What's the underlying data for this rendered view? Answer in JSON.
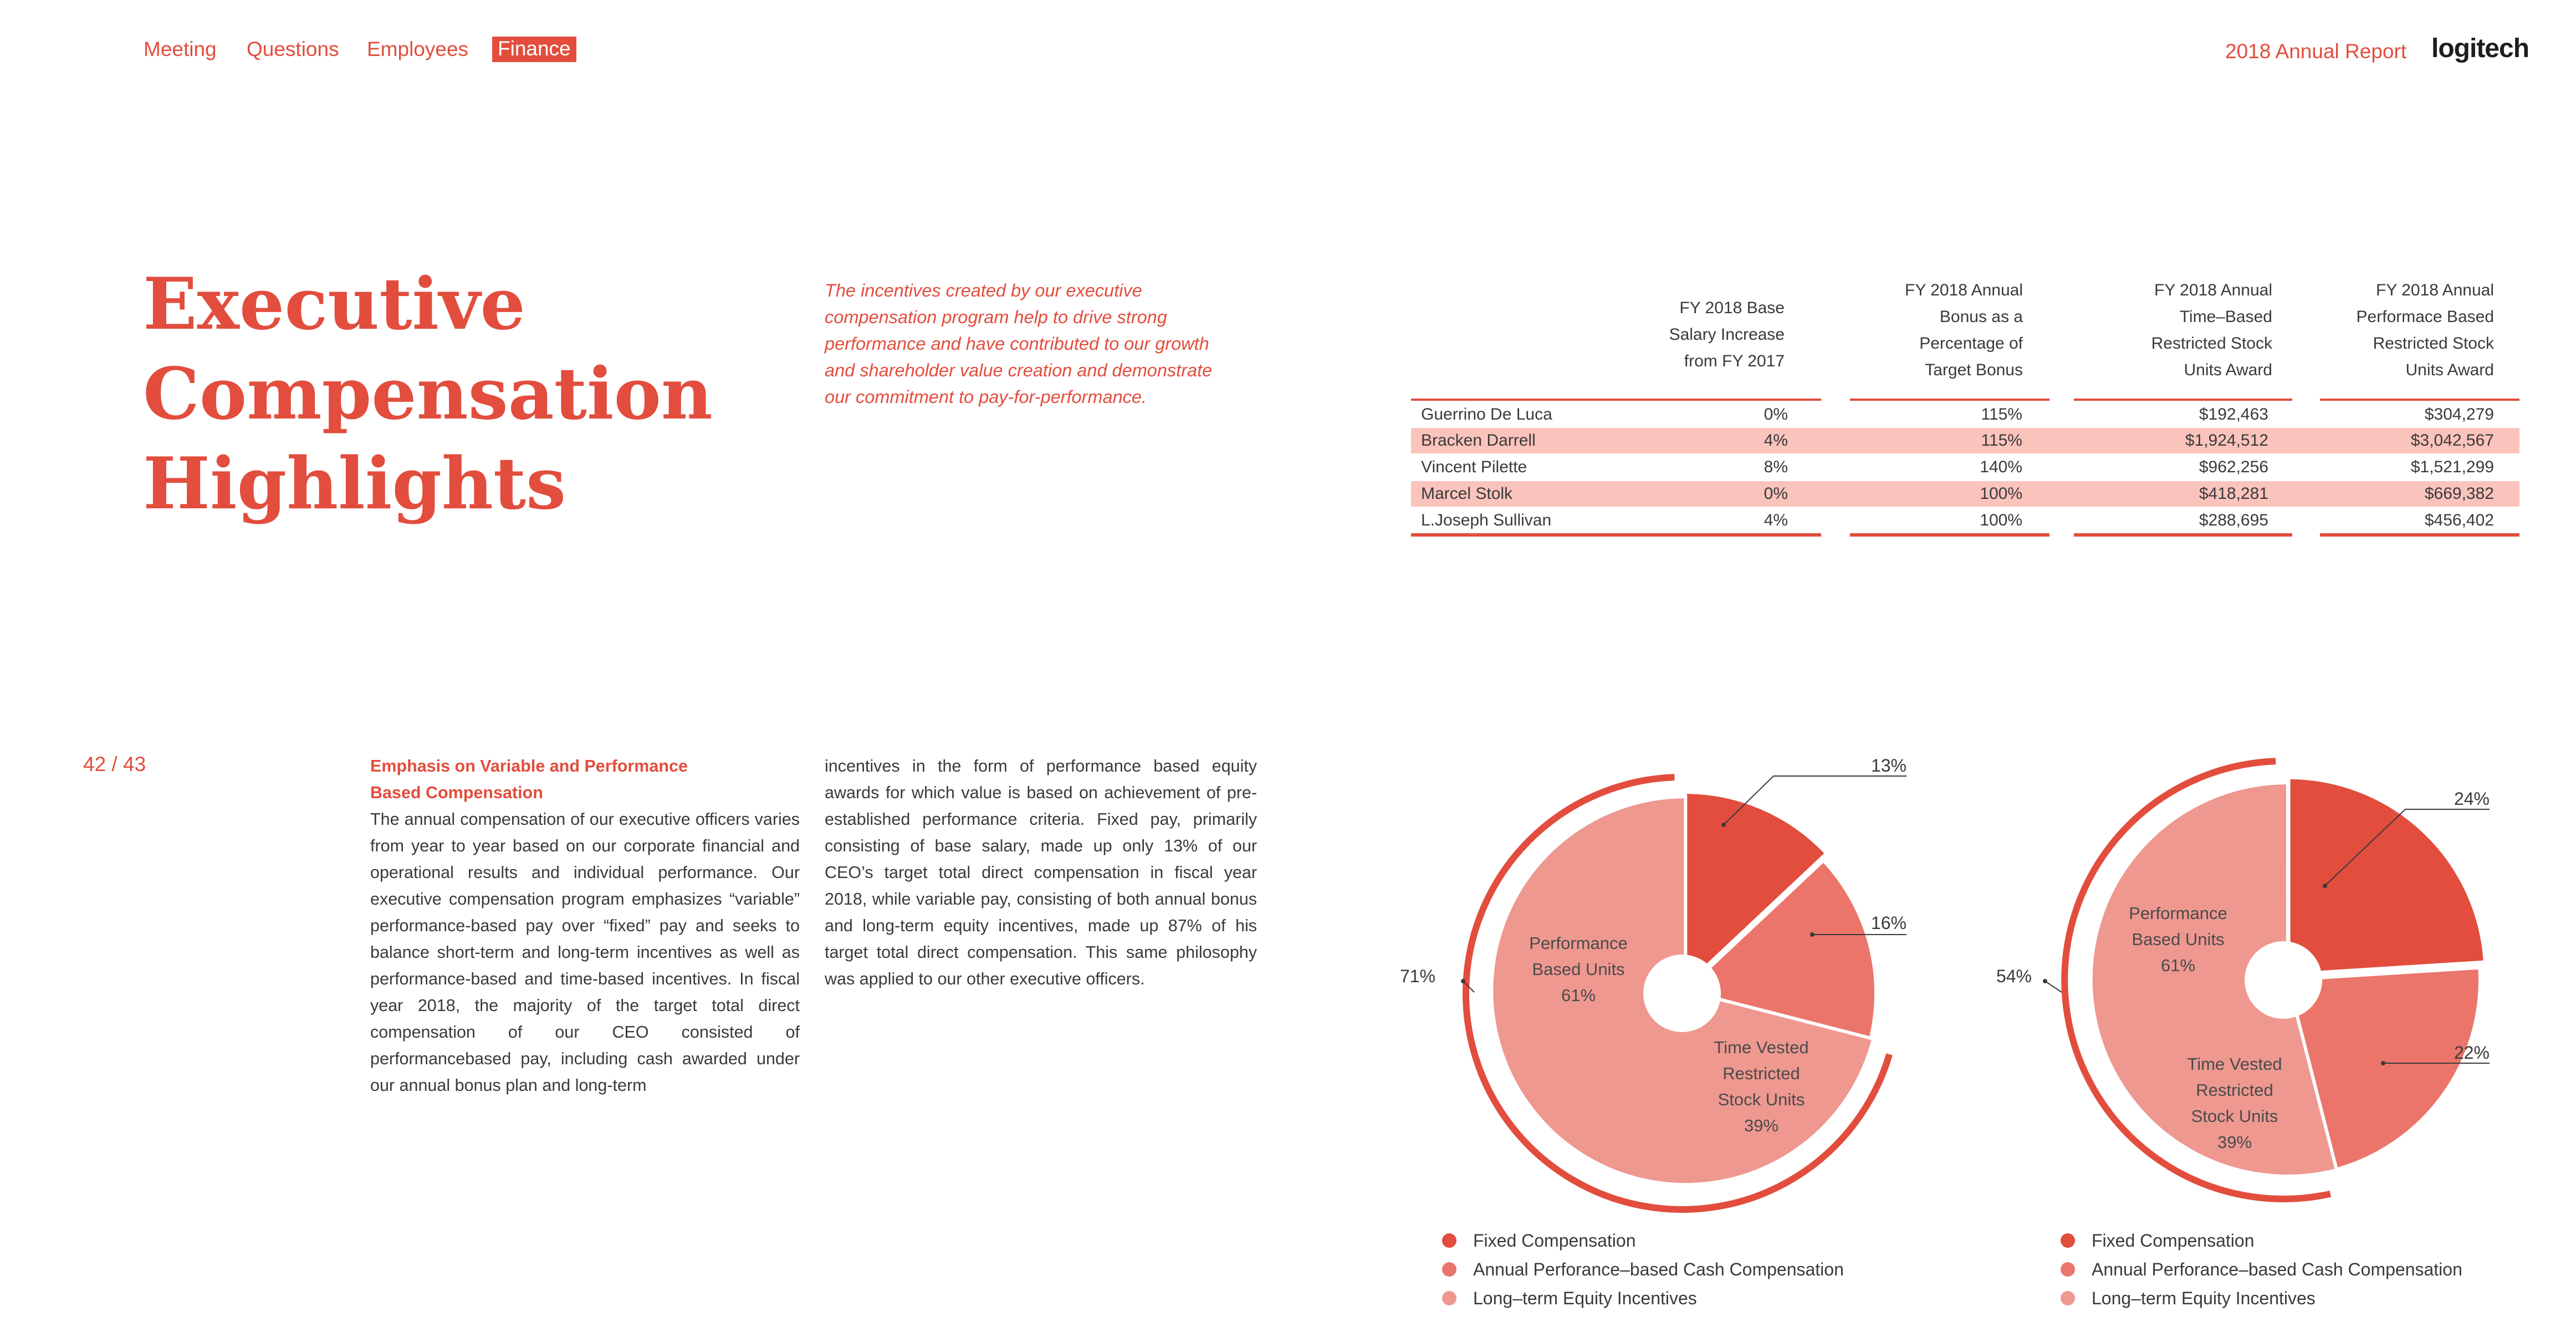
{
  "nav": {
    "items": [
      {
        "label": "Meeting",
        "active": false
      },
      {
        "label": "Questions",
        "active": false
      },
      {
        "label": "Employees",
        "active": false
      },
      {
        "label": "Finance",
        "active": true
      }
    ]
  },
  "header": {
    "report_title": "2018 Annual Report",
    "logo": "logitech"
  },
  "page_number": "42 / 43",
  "title_lines": [
    "Executive",
    "Compensation",
    "Highlights"
  ],
  "quote": "The incentives created by our executive compensation program help to drive strong performance and have contributed to our growth and shareholder value creation and demonstrate our commitment to pay-for-performance.",
  "body": {
    "subheading": "Emphasis on Variable and Performance Based Compensation",
    "col1": "The annual compensation of our executive officers varies from year to year based on our corporate financial and operational results and individual performance. Our executive compensation program emphasizes “variable” performance-based pay over “fixed” pay and seeks to balance short-term and long-term incentives as well as performance-based and time-based incentives. In fiscal year 2018, the majority of the target total direct compensation of our CEO consisted of performancebased pay, including cash awarded under our annual bonus plan and long-term",
    "col2": "incentives in the form of performance based equity awards for which value is based on achievement of pre-established performance criteria. Fixed pay, primarily consisting of base salary, made up only 13% of our CEO’s target total direct compensation in fiscal year 2018, while variable pay, consisting of both annual bonus and long-term equity incentives, made up 87% of his target total direct compensation. This same philosophy was applied to our other executive officers."
  },
  "table": {
    "headers": [
      [
        "FY 2018 Base",
        "Salary Increase",
        "from FY 2017"
      ],
      [
        "FY 2018 Annual",
        "Bonus as a",
        "Percentage of",
        "Target Bonus"
      ],
      [
        "FY 2018 Annual",
        "Time–Based",
        "Restricted Stock",
        "Units Award"
      ],
      [
        "FY 2018 Annual",
        "Performace Based",
        "Restricted Stock",
        "Units Award"
      ]
    ],
    "rows": [
      {
        "name": "Guerrino De Luca",
        "salary_increase": "0%",
        "bonus_pct": "115%",
        "time_rsu": "$192,463",
        "perf_rsu": "$304,279",
        "highlight": false
      },
      {
        "name": "Bracken Darrell",
        "salary_increase": "4%",
        "bonus_pct": "115%",
        "time_rsu": "$1,924,512",
        "perf_rsu": "$3,042,567",
        "highlight": true
      },
      {
        "name": "Vincent Pilette",
        "salary_increase": "8%",
        "bonus_pct": "140%",
        "time_rsu": "$962,256",
        "perf_rsu": "$1,521,299",
        "highlight": false
      },
      {
        "name": "Marcel Stolk",
        "salary_increase": "0%",
        "bonus_pct": "100%",
        "time_rsu": "$418,281",
        "perf_rsu": "$669,382",
        "highlight": true
      },
      {
        "name": "L.Joseph Sullivan",
        "salary_increase": "4%",
        "bonus_pct": "100%",
        "time_rsu": "$288,695",
        "perf_rsu": "$456,402",
        "highlight": false
      }
    ]
  },
  "colors": {
    "accent": "#e24d3d",
    "fixed": "#e24d3d",
    "annual_cash": "#eb756b",
    "long_term": "#ee9890",
    "row_highlight": "#fac3bc"
  },
  "chart_data": [
    {
      "type": "pie",
      "slices": [
        {
          "label": "Fixed Compensation",
          "value": 13
        },
        {
          "label": "Annual Perforance–based Cash Compensation",
          "value": 16
        },
        {
          "label": "Long–term Equity Incentives",
          "value": 71
        }
      ],
      "slice_labels": [
        "13%",
        "16%",
        "71%"
      ],
      "inner_labels": [
        {
          "lines": [
            "Performance",
            "Based Units"
          ],
          "value": "61%"
        },
        {
          "lines": [
            "Time Vested",
            "Restricted",
            "Stock Units"
          ],
          "value": "39%"
        }
      ],
      "legend": [
        "Fixed Compensation",
        "Annual Perforance–based Cash Compensation",
        "Long–term Equity Incentives"
      ]
    },
    {
      "type": "pie",
      "slices": [
        {
          "label": "Fixed Compensation",
          "value": 24
        },
        {
          "label": "Annual Perforance–based Cash Compensation",
          "value": 22
        },
        {
          "label": "Long–term Equity Incentives",
          "value": 54
        }
      ],
      "slice_labels": [
        "24%",
        "22%",
        "54%"
      ],
      "inner_labels": [
        {
          "lines": [
            "Performance",
            "Based Units"
          ],
          "value": "61%"
        },
        {
          "lines": [
            "Time Vested",
            "Restricted",
            "Stock Units"
          ],
          "value": "39%"
        }
      ],
      "legend": [
        "Fixed Compensation",
        "Annual Perforance–based Cash Compensation",
        "Long–term Equity Incentives"
      ]
    }
  ]
}
